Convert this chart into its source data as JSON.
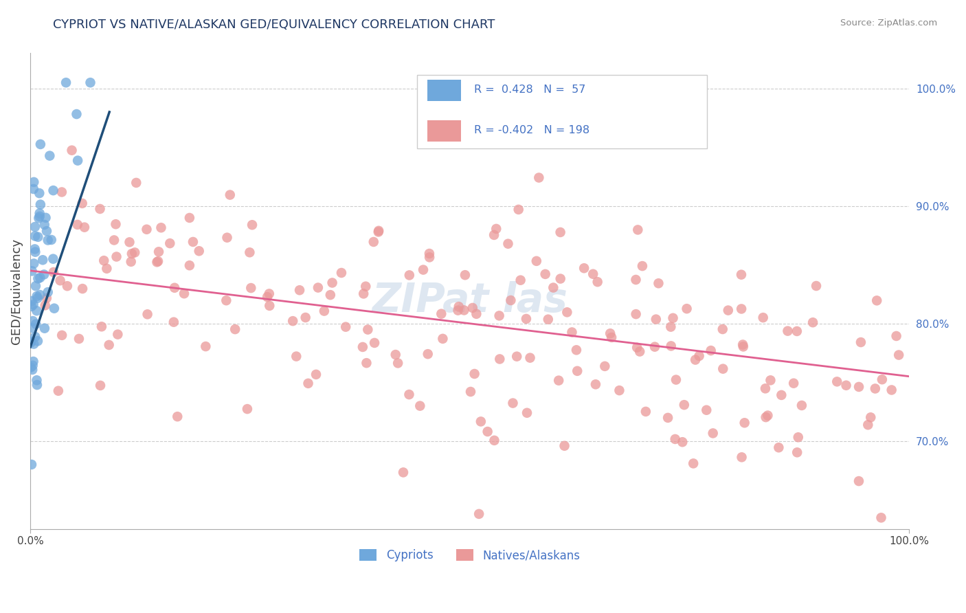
{
  "title": "CYPRIOT VS NATIVE/ALASKAN GED/EQUIVALENCY CORRELATION CHART",
  "source": "Source: ZipAtlas.com",
  "ylabel": "GED/Equivalency",
  "xmin": 0.0,
  "xmax": 1.0,
  "ymin": 0.625,
  "ymax": 1.03,
  "right_yticks": [
    0.7,
    0.8,
    0.9,
    1.0
  ],
  "right_yticklabels": [
    "70.0%",
    "80.0%",
    "90.0%",
    "100.0%"
  ],
  "blue_R": 0.428,
  "blue_N": 57,
  "pink_R": -0.402,
  "pink_N": 198,
  "blue_color": "#6fa8dc",
  "pink_color": "#ea9999",
  "blue_line_color": "#1f4e79",
  "pink_line_color": "#e06090",
  "legend_label_blue": "Cypriots",
  "legend_label_pink": "Natives/Alaskans",
  "title_color": "#1f3864",
  "source_color": "#888888",
  "grid_color": "#cccccc",
  "axis_color": "#aaaaaa",
  "tick_color": "#444444",
  "watermark_text": "ZIPat las",
  "watermark_color": "#c8d8e8",
  "blue_line_start_x": 0.0,
  "blue_line_end_x": 0.09,
  "pink_line_start_x": 0.0,
  "pink_line_end_x": 1.0,
  "blue_line_start_y": 0.78,
  "blue_line_end_y": 0.98,
  "pink_line_start_y": 0.845,
  "pink_line_end_y": 0.755
}
